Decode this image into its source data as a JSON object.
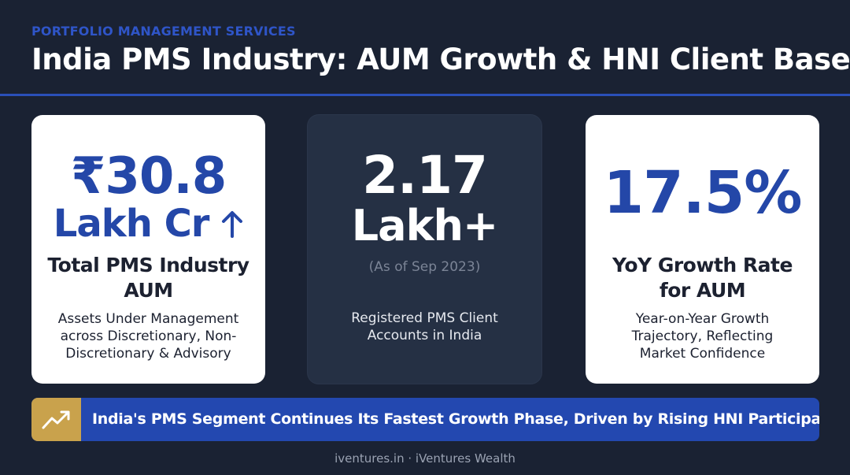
{
  "header": {
    "kicker": "PORTFOLIO MANAGEMENT SERVICES",
    "title": "India PMS Industry: AUM Growth & HNI Client Base"
  },
  "cards": [
    {
      "value": "₹30.8",
      "unit": "Lakh Cr",
      "label": "Total PMS Industry AUM",
      "description": "Assets Under Management across Discretionary, Non-Discretionary & Advisory"
    },
    {
      "value": "2.17",
      "unit": "Lakh+",
      "note": "(As of Sep 2023)",
      "description": "Registered PMS Client Accounts in India"
    },
    {
      "value": "17.5%",
      "label": "YoY Growth Rate for AUM",
      "description": "Year-on-Year Growth Trajectory, Reflecting Market Confidence"
    }
  ],
  "banner": {
    "text": "India's PMS Segment Continues Its Fastest Growth Phase, Driven by Rising HNI Participation."
  },
  "footer": {
    "text": "iventures.in · iVentures Wealth"
  }
}
